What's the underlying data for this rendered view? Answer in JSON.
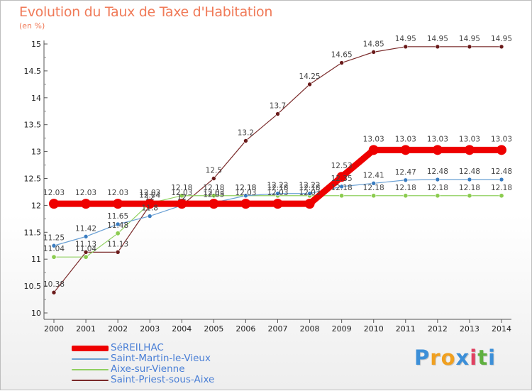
{
  "chart_data": {
    "type": "line",
    "title": "Evolution du Taux de Taxe d'Habitation",
    "ylabel": "(en %)",
    "xlabel": "",
    "ylim": [
      10,
      15
    ],
    "yticks": [
      "10",
      "10.5",
      "11",
      "11.5",
      "12",
      "12.5",
      "13",
      "13.5",
      "14",
      "14.5",
      "15"
    ],
    "x": [
      "2000",
      "2001",
      "2002",
      "2003",
      "2004",
      "2005",
      "2006",
      "2007",
      "2008",
      "2009",
      "2010",
      "2011",
      "2012",
      "2013",
      "2014"
    ],
    "series": [
      {
        "name": "Saint-Priest-sous-Aixe",
        "color": "#7a2a2a",
        "values": [
          10.38,
          11.13,
          11.13,
          12.0,
          12.0,
          12.5,
          13.2,
          13.7,
          14.25,
          14.65,
          14.85,
          14.95,
          14.95,
          14.95,
          14.95
        ],
        "labels": [
          "10.38",
          "11.13",
          "11.13",
          "12",
          "12",
          "12.5",
          "13.2",
          "13.7",
          "14.25",
          "14.65",
          "14.85",
          "14.95",
          "14.95",
          "14.95",
          "14.95"
        ]
      },
      {
        "name": "Aixe-sur-Vienne",
        "color": "#90d060",
        "values": [
          11.04,
          11.04,
          11.48,
          12.04,
          12.18,
          12.18,
          12.18,
          12.18,
          12.18,
          12.18,
          12.18,
          12.18,
          12.18,
          12.18,
          12.18
        ],
        "labels": [
          "11.04",
          "11.04",
          "11.48",
          "12.04",
          "12.18",
          "12.18",
          "12.18",
          "12.18",
          "12.18",
          "12.18",
          "12.18",
          "12.18",
          "12.18",
          "12.18",
          "12.18"
        ]
      },
      {
        "name": "Saint-Martin-le-Vieux",
        "color": "#6aa0d4",
        "values": [
          11.25,
          11.42,
          11.65,
          11.8,
          12.0,
          12.05,
          12.18,
          12.22,
          12.22,
          12.35,
          12.41,
          12.47,
          12.48,
          12.48,
          12.48
        ],
        "labels": [
          "11.25",
          "11.42",
          "11.65",
          "11.8",
          "12",
          "12.05",
          "12.18",
          "12.22",
          "12.22",
          "12.35",
          "12.41",
          "12.47",
          "12.48",
          "12.48",
          "12.48"
        ]
      },
      {
        "name": "SéREILHAC",
        "color": "#ee0000",
        "values": [
          12.03,
          12.03,
          12.03,
          12.03,
          12.03,
          12.03,
          12.03,
          12.03,
          12.03,
          12.53,
          13.03,
          13.03,
          13.03,
          13.03,
          13.03
        ],
        "labels": [
          "12.03",
          "12.03",
          "12.03",
          "12.03",
          "12.03",
          "12.03",
          "12.03",
          "12.03",
          "12.03",
          "12.53",
          "13.03",
          "13.03",
          "13.03",
          "13.03",
          "13.03"
        ]
      }
    ],
    "legend_order": [
      "SéREILHAC",
      "Saint-Martin-le-Vieux",
      "Aixe-sur-Vienne",
      "Saint-Priest-sous-Aixe"
    ],
    "legend_position": "bottom-left",
    "grid": false
  },
  "brand": {
    "logo_letters": [
      "P",
      "r",
      "o",
      "x",
      "i",
      "t",
      "i"
    ],
    "logo_colors": [
      "#3c8fd8",
      "#f0a020",
      "#f0a020",
      "#3c8fd8",
      "#e04060",
      "#60b040",
      "#3c8fd8"
    ]
  }
}
